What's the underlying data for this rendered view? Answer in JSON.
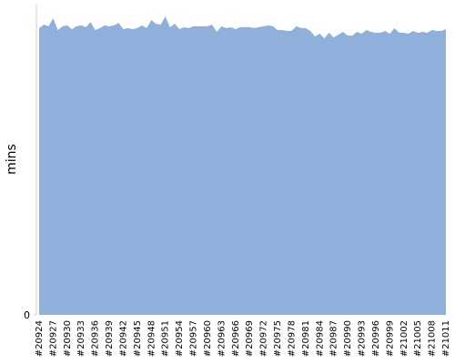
{
  "chart_data": {
    "type": "area",
    "y_label": "mins",
    "color": "#8fb0da",
    "categories": [
      "#20924",
      null,
      null,
      "#20927",
      null,
      null,
      "#20930",
      null,
      null,
      "#20933",
      null,
      null,
      "#20936",
      null,
      null,
      "#20939",
      null,
      null,
      "#20942",
      null,
      null,
      "#20945",
      null,
      null,
      "#20948",
      null,
      null,
      "#20951",
      null,
      null,
      "#20954",
      null,
      null,
      "#20957",
      null,
      null,
      "#20960",
      null,
      null,
      "#20963",
      null,
      null,
      "#20966",
      null,
      null,
      "#20969",
      null,
      null,
      "#20972",
      null,
      null,
      "#20975",
      null,
      null,
      "#20978",
      null,
      null,
      "#20981",
      null,
      null,
      "#20984",
      null,
      null,
      "#20987",
      null,
      null,
      "#20990",
      null,
      null,
      "#20993",
      null,
      null,
      "#20996",
      null,
      null,
      "#20999",
      null,
      null,
      "#21002",
      null,
      null,
      "#21005",
      null,
      null,
      "#21008",
      null,
      null,
      "#21011"
    ],
    "values": [
      92.4,
      93.5,
      93.0,
      95.6,
      91.8,
      93.0,
      93.3,
      92.1,
      93.0,
      93.3,
      92.7,
      94.4,
      91.8,
      92.4,
      93.3,
      93.0,
      93.3,
      94.1,
      92.1,
      92.4,
      92.1,
      92.4,
      93.3,
      92.4,
      95.0,
      93.8,
      93.5,
      96.2,
      92.7,
      93.8,
      92.1,
      92.7,
      92.4,
      93.0,
      93.0,
      93.0,
      93.0,
      93.5,
      91.2,
      93.0,
      92.4,
      92.7,
      92.1,
      92.7,
      92.7,
      92.7,
      92.4,
      92.7,
      93.0,
      93.3,
      93.0,
      91.8,
      91.8,
      91.5,
      91.5,
      93.0,
      92.4,
      92.4,
      91.5,
      89.7,
      90.6,
      89.1,
      90.9,
      89.4,
      90.3,
      91.2,
      90.0,
      90.0,
      91.2,
      90.6,
      91.8,
      91.2,
      90.9,
      90.9,
      91.5,
      90.6,
      92.4,
      90.9,
      90.9,
      90.6,
      91.5,
      90.9,
      91.2,
      90.9,
      91.8,
      91.5,
      91.5,
      92.1
    ],
    "ylim": [
      0,
      100
    ],
    "yticks": [
      0
    ]
  }
}
